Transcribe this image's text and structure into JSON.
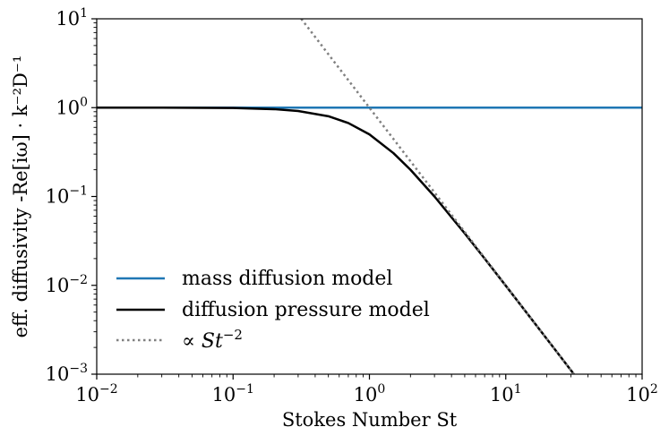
{
  "chart_data": {
    "type": "line",
    "scale": {
      "x": "log",
      "y": "log"
    },
    "xlim": [
      0.01,
      100
    ],
    "ylim": [
      0.001,
      10
    ],
    "xlabel": "Stokes Number St",
    "ylabel": "eff. diffusivity -Re[iω] · k⁻²D⁻¹",
    "x_ticks": [
      {
        "value": 0.01,
        "base": "10",
        "exp": "−2"
      },
      {
        "value": 0.1,
        "base": "10",
        "exp": "−1"
      },
      {
        "value": 1,
        "base": "10",
        "exp": "0"
      },
      {
        "value": 10,
        "base": "10",
        "exp": "1"
      },
      {
        "value": 100,
        "base": "10",
        "exp": "2"
      }
    ],
    "y_ticks": [
      {
        "value": 0.001,
        "base": "10",
        "exp": "−3"
      },
      {
        "value": 0.01,
        "base": "10",
        "exp": "−2"
      },
      {
        "value": 0.1,
        "base": "10",
        "exp": "−1"
      },
      {
        "value": 1,
        "base": "10",
        "exp": "0"
      },
      {
        "value": 10,
        "base": "10",
        "exp": "1"
      }
    ],
    "series": [
      {
        "name": "mass diffusion model",
        "color": "#1f77b4",
        "style": "solid",
        "x": [
          0.01,
          100
        ],
        "y": [
          1,
          1
        ]
      },
      {
        "name": "diffusion pressure model",
        "color": "#000000",
        "style": "solid",
        "x": [
          0.01,
          0.03,
          0.1,
          0.2,
          0.3,
          0.5,
          0.7,
          1,
          1.5,
          2,
          3,
          5,
          7,
          10,
          15,
          20,
          30,
          31.6
        ],
        "y": [
          1,
          0.9991,
          0.9901,
          0.9615,
          0.9174,
          0.8,
          0.6711,
          0.5,
          0.3077,
          0.2,
          0.1,
          0.03846,
          0.02,
          0.0099,
          0.00442,
          0.002494,
          0.00111,
          0.001
        ]
      },
      {
        "name": "∝ St⁻²",
        "color": "#808080",
        "style": "dotted",
        "x": [
          0.316,
          31.6
        ],
        "y": [
          10,
          0.001
        ]
      }
    ],
    "legend": {
      "position": "lower-left",
      "entries": [
        {
          "label": "mass diffusion model",
          "color": "#1f77b4",
          "style": "solid"
        },
        {
          "label": "diffusion pressure model",
          "color": "#000000",
          "style": "solid"
        },
        {
          "label_prefix": "∝ ",
          "label_var": "St",
          "label_exp": "−2",
          "color": "#808080",
          "style": "dotted"
        }
      ]
    },
    "grid": false
  }
}
